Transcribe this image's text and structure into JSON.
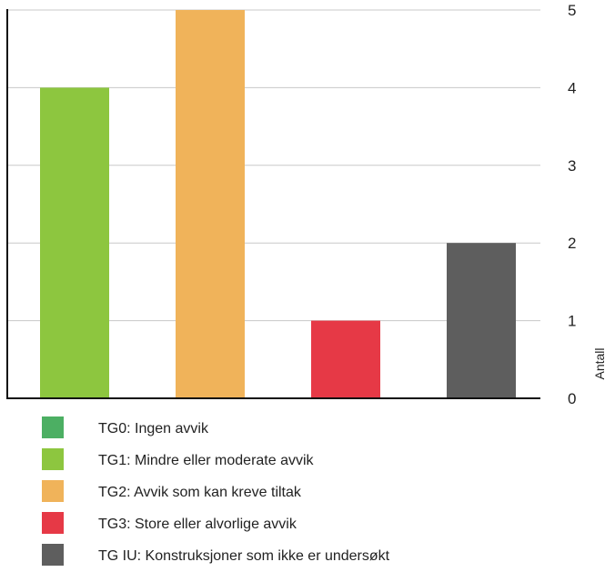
{
  "chart_data": {
    "type": "bar",
    "categories": [
      "TG0: Ingen avvik",
      "TG1: Mindre eller moderate avvik",
      "TG2: Avvik som kan kreve tiltak",
      "TG3: Store eller alvorlige avvik",
      "TG IU: Konstruksjoner som ikke er undersøkt"
    ],
    "values": [
      0,
      4,
      5,
      1,
      2
    ],
    "colors": [
      "#4caf63",
      "#8dc63f",
      "#f0b35a",
      "#e63946",
      "#5e5e5e"
    ],
    "title": "",
    "xlabel": "",
    "ylabel": "Antall",
    "ylim": [
      0,
      5
    ],
    "yticks": [
      "0",
      "1",
      "2",
      "3",
      "4",
      "5"
    ],
    "y_axis_side": "right",
    "grid": true,
    "grid_color": "#c8c8c8",
    "axis_color": "#111111",
    "legend_position": "bottom-left",
    "legend": [
      {
        "label": "TG0: Ingen avvik",
        "color": "#4caf63"
      },
      {
        "label": "TG1: Mindre eller moderate avvik",
        "color": "#8dc63f"
      },
      {
        "label": "TG2: Avvik som kan kreve tiltak",
        "color": "#f0b35a"
      },
      {
        "label": "TG3: Store eller alvorlige avvik",
        "color": "#e63946"
      },
      {
        "label": "TG IU: Konstruksjoner som ikke er undersøkt",
        "color": "#5e5e5e"
      }
    ]
  }
}
